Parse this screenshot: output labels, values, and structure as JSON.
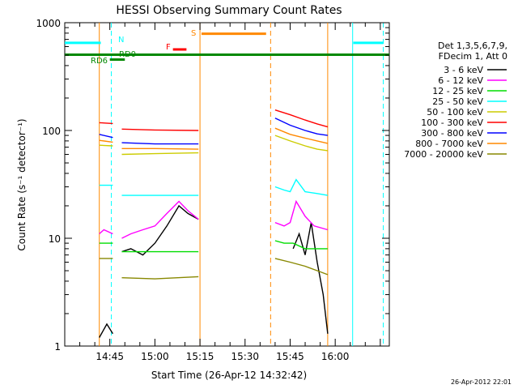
{
  "chart_data": {
    "type": "line",
    "title": "HESSI Observing Summary Count Rates",
    "xlabel": "Start Time (26-Apr-12 14:32:42)",
    "ylabel": "Count Rate (s⁻¹ detector⁻¹)",
    "y_scale": "log",
    "ylim": [
      1,
      1000
    ],
    "xlim_minutes_after_1430": [
      0,
      108
    ],
    "x_ticks": [
      {
        "label": "14:45",
        "t": 15
      },
      {
        "label": "15:00",
        "t": 30
      },
      {
        "label": "15:15",
        "t": 45
      },
      {
        "label": "15:30",
        "t": 60
      },
      {
        "label": "15:45",
        "t": 75
      },
      {
        "label": "16:00",
        "t": 90
      }
    ],
    "y_ticks": [
      {
        "label": "1",
        "v": 1
      },
      {
        "label": "10",
        "v": 10
      },
      {
        "label": "100",
        "v": 100
      },
      {
        "label": "1000",
        "v": 1000
      }
    ],
    "legend_header": [
      "Det 1,3,5,6,7,9,",
      "FDecim 1, Att 0"
    ],
    "series": [
      {
        "name": "3 - 6 keV",
        "color": "#000000",
        "segments": [
          {
            "t": [
              11.5,
              14,
              16
            ],
            "v": [
              1.2,
              1.6,
              1.3
            ]
          },
          {
            "t": [
              19,
              22,
              26,
              30,
              34,
              38,
              41,
              44.5
            ],
            "v": [
              7.5,
              8,
              7,
              9,
              13,
              20,
              17,
              15
            ]
          },
          {
            "t": [
              76,
              78,
              80,
              82,
              84,
              86,
              87.5
            ],
            "v": [
              8,
              11,
              7,
              14,
              6,
              3,
              1.3
            ]
          }
        ]
      },
      {
        "name": "6 - 12 keV",
        "color": "#ff00ff",
        "segments": [
          {
            "t": [
              11.5,
              13,
              16
            ],
            "v": [
              11,
              12,
              11
            ]
          },
          {
            "t": [
              19,
              22,
              26,
              30,
              34,
              38,
              41,
              44.5
            ],
            "v": [
              10,
              11,
              12,
              13,
              17,
              22,
              18,
              15
            ]
          },
          {
            "t": [
              70,
              73,
              75,
              77,
              80,
              83,
              87.5
            ],
            "v": [
              14,
              13,
              14,
              22,
              16,
              13,
              12
            ]
          }
        ]
      },
      {
        "name": "12 - 25 keV",
        "color": "#00dd00",
        "segments": [
          {
            "t": [
              11.5,
              16
            ],
            "v": [
              9,
              9
            ]
          },
          {
            "t": [
              19,
              25,
              30,
              35,
              40,
              44.5
            ],
            "v": [
              7.5,
              7.5,
              7.5,
              7.5,
              7.5,
              7.5
            ]
          },
          {
            "t": [
              70,
              73,
              76,
              80,
              84,
              87.5
            ],
            "v": [
              9.5,
              9,
              9,
              8,
              8,
              8
            ]
          }
        ]
      },
      {
        "name": "25 - 50 keV",
        "color": "#00ffff",
        "segments": [
          {
            "t": [
              11.5,
              16
            ],
            "v": [
              31,
              31
            ]
          },
          {
            "t": [
              19,
              30,
              44.5
            ],
            "v": [
              25,
              25,
              25
            ]
          },
          {
            "t": [
              70,
              73,
              75,
              77,
              80,
              84,
              87.5
            ],
            "v": [
              30,
              28,
              27,
              35,
              27,
              26,
              25
            ]
          }
        ]
      },
      {
        "name": "50 - 100 keV",
        "color": "#cccc00",
        "segments": [
          {
            "t": [
              11.5,
              16
            ],
            "v": [
              73,
              72
            ]
          },
          {
            "t": [
              19,
              30,
              44.5
            ],
            "v": [
              60,
              61,
              62
            ]
          },
          {
            "t": [
              70,
              75,
              80,
              84,
              87.5
            ],
            "v": [
              90,
              80,
              72,
              67,
              65
            ]
          }
        ]
      },
      {
        "name": "100 - 300 keV",
        "color": "#ff0000",
        "segments": [
          {
            "t": [
              11.5,
              16
            ],
            "v": [
              118,
              116
            ]
          },
          {
            "t": [
              19,
              30,
              44.5
            ],
            "v": [
              103,
              101,
              100
            ]
          },
          {
            "t": [
              70,
              75,
              80,
              84,
              87.5
            ],
            "v": [
              155,
              140,
              125,
              115,
              108
            ]
          }
        ]
      },
      {
        "name": "300 - 800 keV",
        "color": "#0000ff",
        "segments": [
          {
            "t": [
              11.5,
              16
            ],
            "v": [
              92,
              86
            ]
          },
          {
            "t": [
              19,
              30,
              44.5
            ],
            "v": [
              77,
              75,
              75
            ]
          },
          {
            "t": [
              70,
              75,
              80,
              84,
              87.5
            ],
            "v": [
              130,
              112,
              100,
              93,
              90
            ]
          }
        ]
      },
      {
        "name": "800 - 7000 keV",
        "color": "#ff8800",
        "segments": [
          {
            "t": [
              11.5,
              16
            ],
            "v": [
              81,
              78
            ]
          },
          {
            "t": [
              19,
              30,
              44.5
            ],
            "v": [
              68,
              68,
              67
            ]
          },
          {
            "t": [
              70,
              75,
              80,
              84,
              87.5
            ],
            "v": [
              105,
              92,
              85,
              80,
              76
            ]
          }
        ]
      },
      {
        "name": "7000 - 20000 keV",
        "color": "#888800",
        "segments": [
          {
            "t": [
              11.5,
              16
            ],
            "v": [
              6.5,
              6.5
            ]
          },
          {
            "t": [
              19,
              30,
              44.5
            ],
            "v": [
              4.3,
              4.2,
              4.4
            ]
          },
          {
            "t": [
              70,
              75,
              80,
              84,
              87.5
            ],
            "v": [
              6.5,
              6,
              5.5,
              5,
              4.6
            ]
          }
        ]
      }
    ],
    "flags": [
      {
        "label": "N",
        "color": "#00ffff",
        "segments": [
          [
            0,
            12
          ],
          [
            96,
            106
          ]
        ],
        "v": 650
      },
      {
        "label": "S",
        "color": "#ff8800",
        "segments": [
          [
            45.5,
            67
          ]
        ],
        "v": 790
      },
      {
        "label": "F",
        "color": "#ff0000",
        "segments": [
          [
            36,
            40.5
          ]
        ],
        "v": 565
      },
      {
        "label": "RD0",
        "color": "#008800",
        "segments": [
          [
            15,
            20
          ]
        ],
        "v": 455
      },
      {
        "label": "RD6",
        "color": "#008800",
        "segments": [
          [
            0,
            108
          ]
        ],
        "v": 505
      }
    ],
    "vertical_markers": [
      {
        "t": 11.5,
        "color": "#ff8800",
        "style": "solid"
      },
      {
        "t": 15.5,
        "color": "#00ffff",
        "style": "dashed"
      },
      {
        "t": 45.0,
        "color": "#ff8800",
        "style": "solid"
      },
      {
        "t": 68.5,
        "color": "#ff8800",
        "style": "dashed"
      },
      {
        "t": 87.5,
        "color": "#ff8800",
        "style": "solid"
      },
      {
        "t": 95.8,
        "color": "#00ffff",
        "style": "solid"
      },
      {
        "t": 106.0,
        "color": "#00ffff",
        "style": "dashed"
      }
    ]
  },
  "footer": {
    "timestamp": "26-Apr-2012 22:01"
  }
}
